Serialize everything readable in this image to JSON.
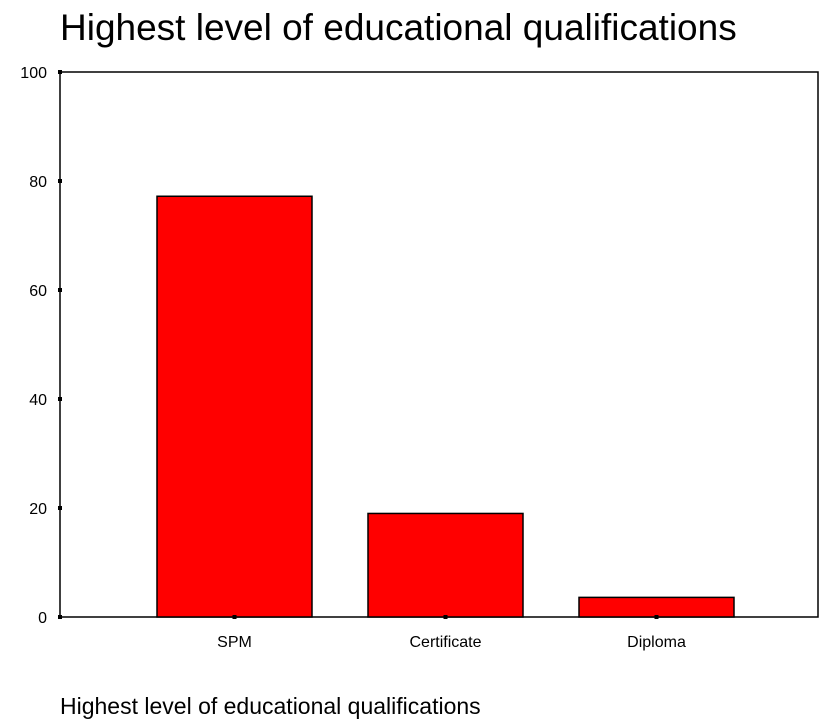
{
  "chart_data": {
    "type": "bar",
    "title": "Highest level of educational qualifications",
    "xlabel": "Highest level of educational qualifications",
    "ylabel": "",
    "categories": [
      "SPM",
      "Certificate",
      "Diploma"
    ],
    "values": [
      77.2,
      19.0,
      3.6
    ],
    "ylim": [
      0,
      100
    ],
    "yticks": [
      0,
      20,
      40,
      60,
      80,
      100
    ],
    "bar_color": "#ff0000",
    "grid": false,
    "legend": "none"
  }
}
